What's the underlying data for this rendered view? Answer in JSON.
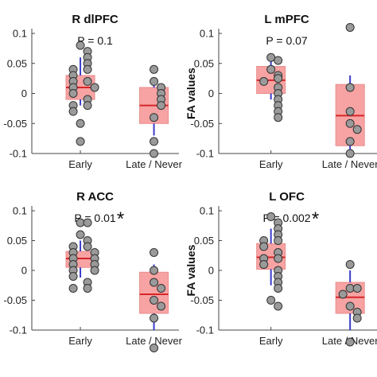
{
  "figure": {
    "colors": {
      "box_fill": "#f7a3a3",
      "box_edge": "#e88c8c",
      "median": "#d62728",
      "whisker": "#3b3bcc",
      "point_fill": "#9a9a9a",
      "point_edge": "#333333",
      "axis": "#444444"
    }
  },
  "chart_data": [
    {
      "type": "box",
      "title": "R dlPFC",
      "annotation": "P = 0.1",
      "significant": false,
      "ylabel": "",
      "ylim": [
        -0.1,
        0.1
      ],
      "yticks": [
        "-0.1",
        "-0.05",
        "0",
        "0.05",
        "0.1"
      ],
      "categories": [
        "Early",
        "Late / Never"
      ],
      "groups": [
        {
          "name": "Early",
          "q1": -0.01,
          "median": 0.01,
          "q3": 0.03,
          "whisker_low": -0.02,
          "whisker_high": 0.06,
          "points": [
            0.08,
            0.07,
            0.06,
            0.05,
            0.04,
            0.04,
            0.03,
            0.02,
            0.02,
            0.01,
            0.01,
            0.0,
            -0.01,
            -0.02,
            -0.02,
            -0.03,
            -0.05,
            -0.08
          ]
        },
        {
          "name": "Late / Never",
          "q1": -0.05,
          "median": -0.02,
          "q3": 0.01,
          "whisker_low": -0.07,
          "whisker_high": 0.02,
          "points": [
            0.04,
            0.02,
            0.01,
            0.0,
            -0.01,
            -0.02,
            -0.04,
            -0.08,
            -0.1
          ]
        }
      ]
    },
    {
      "type": "box",
      "title": "L mPFC",
      "annotation": "P = 0.07",
      "significant": false,
      "ylabel": "FA values",
      "ylim": [
        -0.1,
        0.1
      ],
      "yticks": [
        "-0.1",
        "-0.05",
        "0",
        "0.05",
        "0.1"
      ],
      "categories": [
        "Early",
        "Late / Never"
      ],
      "groups": [
        {
          "name": "Early",
          "q1": 0.0,
          "median": 0.022,
          "q3": 0.045,
          "whisker_low": -0.01,
          "whisker_high": 0.06,
          "points": [
            0.06,
            0.055,
            0.04,
            0.03,
            0.025,
            0.02,
            0.01,
            0.0,
            -0.01,
            -0.02,
            -0.03,
            -0.04
          ]
        },
        {
          "name": "Late / Never",
          "q1": -0.087,
          "median": -0.037,
          "q3": 0.015,
          "whisker_low": -0.1,
          "whisker_high": 0.03,
          "points": [
            0.11,
            0.01,
            -0.03,
            -0.05,
            -0.06,
            -0.08,
            -0.1
          ]
        }
      ]
    },
    {
      "type": "box",
      "title": "R ACC",
      "annotation": "P = 0.01",
      "significant": true,
      "star": "*",
      "ylabel": "",
      "ylim": [
        -0.1,
        0.1
      ],
      "yticks": [
        "-0.1",
        "-0.05",
        "0",
        "0.05",
        "0.1"
      ],
      "categories": [
        "Early",
        "Late / Never"
      ],
      "groups": [
        {
          "name": "Early",
          "q1": 0.005,
          "median": 0.02,
          "q3": 0.032,
          "whisker_low": -0.012,
          "whisker_high": 0.05,
          "points": [
            0.08,
            0.08,
            0.06,
            0.05,
            0.04,
            0.04,
            0.03,
            0.03,
            0.02,
            0.02,
            0.01,
            0.01,
            0.0,
            0.0,
            -0.01,
            -0.02,
            -0.03,
            -0.03
          ]
        },
        {
          "name": "Late / Never",
          "q1": -0.072,
          "median": -0.04,
          "q3": -0.003,
          "whisker_low": -0.1,
          "whisker_high": 0.01,
          "points": [
            0.03,
            0.0,
            -0.02,
            -0.03,
            -0.05,
            -0.06,
            -0.08,
            -0.13
          ]
        }
      ]
    },
    {
      "type": "box",
      "title": "L OFC",
      "annotation": "P = 0.002",
      "significant": true,
      "star": "*",
      "ylabel": "FA values",
      "ylim": [
        -0.1,
        0.1
      ],
      "yticks": [
        "-0.1",
        "-0.05",
        "0",
        "0.05",
        "0.1"
      ],
      "categories": [
        "Early",
        "Late / Never"
      ],
      "groups": [
        {
          "name": "Early",
          "q1": 0.002,
          "median": 0.022,
          "q3": 0.045,
          "whisker_low": -0.025,
          "whisker_high": 0.07,
          "points": [
            0.09,
            0.08,
            0.07,
            0.06,
            0.05,
            0.05,
            0.04,
            0.03,
            0.02,
            0.02,
            0.01,
            0.0,
            -0.01,
            -0.02,
            -0.03,
            -0.05,
            -0.06
          ]
        },
        {
          "name": "Late / Never",
          "q1": -0.072,
          "median": -0.045,
          "q3": -0.02,
          "whisker_low": -0.1,
          "whisker_high": 0.0,
          "points": [
            0.01,
            -0.03,
            -0.03,
            -0.04,
            -0.06,
            -0.07,
            -0.08,
            -0.12
          ]
        }
      ]
    }
  ]
}
